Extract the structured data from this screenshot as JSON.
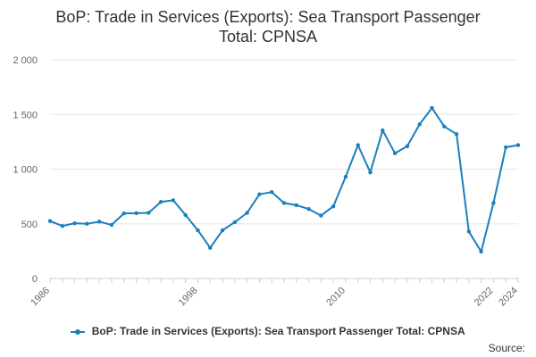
{
  "chart_data": {
    "type": "line",
    "title_lines": [
      "BoP: Trade in Services (Exports): Sea Transport Passenger",
      "Total: CPNSA"
    ],
    "x": [
      1986,
      1987,
      1988,
      1989,
      1990,
      1991,
      1992,
      1993,
      1994,
      1995,
      1996,
      1997,
      1998,
      1999,
      2000,
      2001,
      2002,
      2003,
      2004,
      2005,
      2006,
      2007,
      2008,
      2009,
      2010,
      2011,
      2012,
      2013,
      2014,
      2015,
      2016,
      2017,
      2018,
      2019,
      2020,
      2021,
      2022,
      2023,
      2024
    ],
    "series": [
      {
        "name": "BoP: Trade in Services (Exports): Sea Transport Passenger Total: CPNSA",
        "color": "#1b7fbc",
        "values": [
          525,
          480,
          505,
          500,
          520,
          490,
          595,
          597,
          600,
          700,
          715,
          580,
          440,
          280,
          440,
          515,
          600,
          770,
          790,
          690,
          670,
          635,
          575,
          660,
          930,
          1220,
          970,
          1355,
          1145,
          1210,
          1410,
          1560,
          1390,
          1320,
          430,
          245,
          690,
          1200,
          1220
        ]
      }
    ],
    "xticks": [
      "1986",
      "1998",
      "2010",
      "2022",
      "2024"
    ],
    "yticks": [
      "0",
      "500",
      "1 000",
      "1 500",
      "2 000"
    ],
    "ylim": [
      0,
      2000
    ],
    "grid": true,
    "legend_position": "bottom"
  },
  "source_label": "Source:"
}
